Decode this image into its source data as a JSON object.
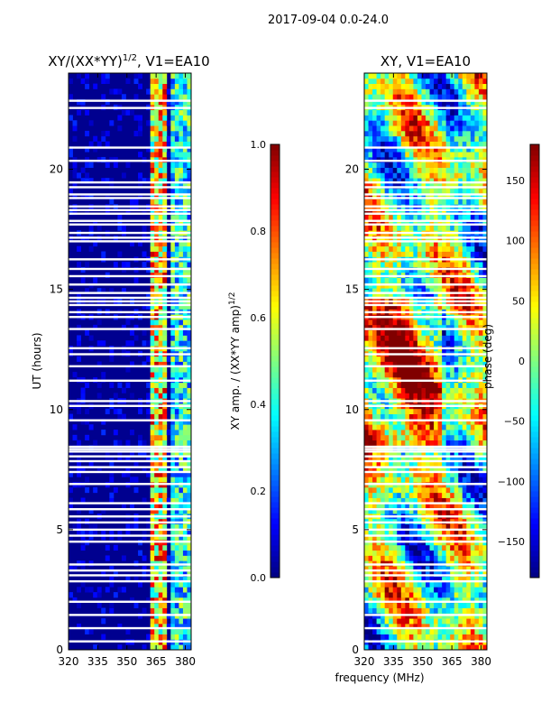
{
  "figure": {
    "suptitle": "2017-09-04 0.0-24.0",
    "xlabel_shared": "frequency (MHz)"
  },
  "chart_data": [
    {
      "type": "heatmap",
      "title": "XY/(XX*YY)^1/2, V1=EA10",
      "title_main": "XY/(XX*YY)",
      "title_exp": "1/2",
      "title_rest": ", V1=EA10",
      "xlabel": "",
      "ylabel": "UT (hours)",
      "xlim": [
        320,
        383
      ],
      "ylim": [
        0,
        24
      ],
      "xticks": [
        320,
        335,
        350,
        365,
        380
      ],
      "yticks": [
        0,
        5,
        10,
        15,
        20
      ],
      "colorbar": {
        "label": "XY amp. / (XX*YY amp)^1/2",
        "label_main": "XY amp. / (XX*YY amp)",
        "label_exp": "1/2",
        "range": [
          0.0,
          1.0
        ],
        "ticks": [
          "0.0",
          "0.2",
          "0.4",
          "0.6",
          "0.8",
          "1.0"
        ],
        "colormap": "jet"
      },
      "gap_hours": [
        0.35,
        0.9,
        1.45,
        2.0,
        2.85,
        3.1,
        3.3,
        3.55,
        4.5,
        4.75,
        5.0,
        5.3,
        5.55,
        5.85,
        6.1,
        6.9,
        7.4,
        7.6,
        7.85,
        8.05,
        8.25,
        8.35,
        8.45,
        9.55,
        10.15,
        10.35,
        11.2,
        11.8,
        12.3,
        12.55,
        13.35,
        13.85,
        14.05,
        14.35,
        14.5,
        14.65,
        14.85,
        15.2,
        15.55,
        15.85,
        16.25,
        17.0,
        17.15,
        17.35,
        17.7,
        17.85,
        18.15,
        18.3,
        18.45,
        18.8,
        18.95,
        19.25,
        19.45,
        20.35,
        20.9,
        22.55,
        22.85
      ]
    },
    {
      "type": "heatmap",
      "title": "XY, V1=EA10",
      "xlabel": "frequency (MHz)",
      "ylabel": "",
      "xlim": [
        320,
        383
      ],
      "ylim": [
        0,
        24
      ],
      "xticks": [
        320,
        335,
        350,
        365,
        380
      ],
      "yticks": [
        0,
        5,
        10,
        15,
        20
      ],
      "colorbar": {
        "label": "phase (deg)",
        "range": [
          -180,
          180
        ],
        "ticks": [
          "−150",
          "−100",
          "−50",
          "0",
          "50",
          "100",
          "150"
        ],
        "tick_values": [
          -150,
          -100,
          -50,
          0,
          50,
          100,
          150
        ],
        "colormap": "jet"
      },
      "gap_hours": [
        0.35,
        0.9,
        1.45,
        2.0,
        2.85,
        3.1,
        3.3,
        3.55,
        4.5,
        4.75,
        5.0,
        5.3,
        5.55,
        5.85,
        6.1,
        6.9,
        7.4,
        7.6,
        7.85,
        8.05,
        8.25,
        8.35,
        8.45,
        9.55,
        10.15,
        10.35,
        11.2,
        11.8,
        12.3,
        12.55,
        13.35,
        13.85,
        14.05,
        14.35,
        14.5,
        14.65,
        14.85,
        15.2,
        15.55,
        15.85,
        16.25,
        17.0,
        17.15,
        17.35,
        17.7,
        17.85,
        18.15,
        18.3,
        18.45,
        18.8,
        18.95,
        19.25,
        19.45,
        20.35,
        20.9,
        22.55,
        22.85
      ]
    }
  ]
}
